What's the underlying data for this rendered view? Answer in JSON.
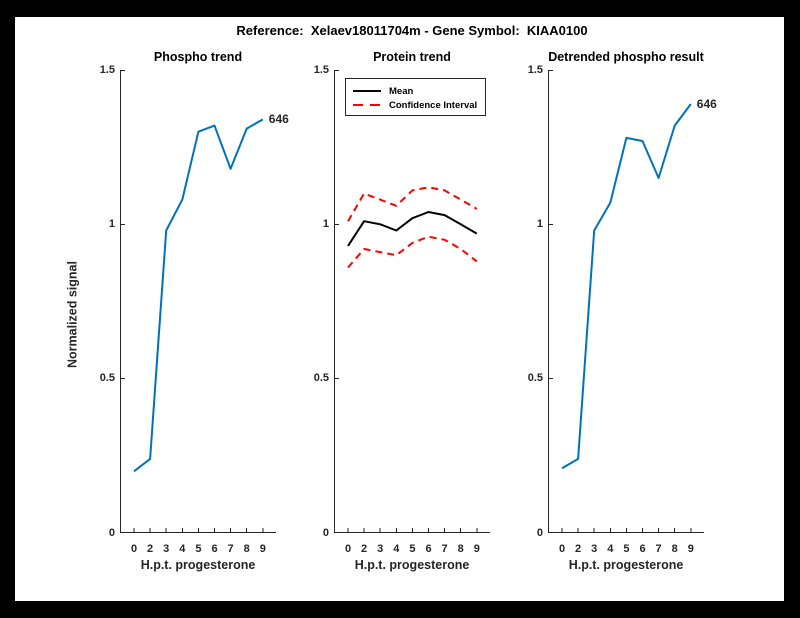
{
  "figure": {
    "suptitle": "Reference:  Xelaev18011704m - Gene Symbol:  KIAA0100",
    "background_color": "#000000",
    "canvas_color": "#ffffff",
    "axis_color": "#262626",
    "accent_blue": "#0072BD",
    "accent_red": "#FF0000"
  },
  "chart_data": [
    {
      "type": "line",
      "title": "Phospho trend",
      "xlabel": "H.p.t. progesterone",
      "ylabel": "Normalized signal",
      "x_tick_labels": [
        "0",
        "2",
        "3",
        "4",
        "5",
        "6",
        "7",
        "8",
        "9"
      ],
      "yticks": [
        0,
        0.5,
        1,
        1.5
      ],
      "ytick_labels": [
        "0",
        "0.5",
        "1",
        "1.5"
      ],
      "ylim": [
        0,
        1.5
      ],
      "grid": false,
      "end_label": "646",
      "series": [
        {
          "name": "Phospho signal",
          "color": "#0072BD",
          "style": "solid",
          "values": [
            0.2,
            0.24,
            0.98,
            1.08,
            1.3,
            1.32,
            1.18,
            1.31,
            1.34
          ]
        }
      ]
    },
    {
      "type": "line",
      "title": "Protein trend",
      "xlabel": "H.p.t. progesterone",
      "ylabel": "",
      "x_tick_labels": [
        "0",
        "2",
        "3",
        "4",
        "5",
        "6",
        "7",
        "8",
        "9"
      ],
      "yticks": [
        0,
        0.5,
        1,
        1.5
      ],
      "ytick_labels": [
        "0",
        "0.5",
        "1",
        "1.5"
      ],
      "ylim": [
        0,
        1.5
      ],
      "grid": false,
      "legend": {
        "position": "top-right",
        "entries": [
          {
            "label": "Mean",
            "color": "#000000",
            "style": "solid"
          },
          {
            "label": "Confidence Interval",
            "color": "#FF0000",
            "style": "dashed"
          }
        ]
      },
      "series": [
        {
          "name": "Confidence Interval upper",
          "color": "#FF0000",
          "style": "dashed",
          "values": [
            1.01,
            1.1,
            1.08,
            1.06,
            1.11,
            1.12,
            1.11,
            1.08,
            1.05
          ]
        },
        {
          "name": "Mean",
          "color": "#000000",
          "style": "solid",
          "values": [
            0.93,
            1.01,
            1.0,
            0.98,
            1.02,
            1.04,
            1.03,
            1.0,
            0.97
          ]
        },
        {
          "name": "Confidence Interval lower",
          "color": "#FF0000",
          "style": "dashed",
          "values": [
            0.86,
            0.92,
            0.91,
            0.9,
            0.94,
            0.96,
            0.95,
            0.92,
            0.88
          ]
        }
      ]
    },
    {
      "type": "line",
      "title": "Detrended phospho result",
      "xlabel": "H.p.t. progesterone",
      "ylabel": "",
      "x_tick_labels": [
        "0",
        "2",
        "3",
        "4",
        "5",
        "6",
        "7",
        "8",
        "9"
      ],
      "yticks": [
        0,
        0.5,
        1,
        1.5
      ],
      "ytick_labels": [
        "0",
        "0.5",
        "1",
        "1.5"
      ],
      "ylim": [
        0,
        1.5
      ],
      "grid": false,
      "end_label": "646",
      "series": [
        {
          "name": "Detrended phospho signal",
          "color": "#0072BD",
          "style": "solid",
          "values": [
            0.21,
            0.24,
            0.98,
            1.07,
            1.28,
            1.27,
            1.15,
            1.32,
            1.39
          ]
        }
      ]
    }
  ]
}
